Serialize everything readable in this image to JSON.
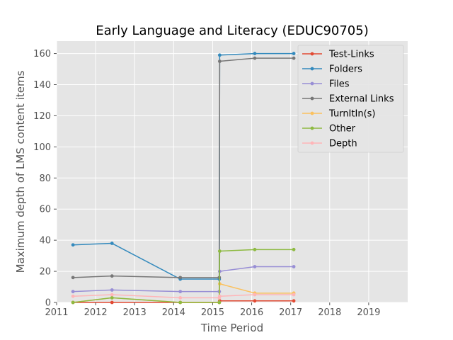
{
  "chart_data": {
    "type": "line",
    "title": "Early Language and Literacy (EDUC90705)",
    "xlabel": "Time Period",
    "ylabel": "Maximum depth of LMS content items",
    "xlim": [
      2011,
      2020
    ],
    "ylim": [
      0,
      168
    ],
    "xticks": [
      2011,
      2012,
      2013,
      2014,
      2015,
      2016,
      2017,
      2018,
      2019
    ],
    "yticks": [
      0,
      20,
      40,
      60,
      80,
      100,
      120,
      140,
      160
    ],
    "grid": true,
    "legend_position": "top-right",
    "series": [
      {
        "name": "Test-Links",
        "color": "#E24A33",
        "x": [
          2011.42,
          2012.42,
          2014.17,
          2015.17,
          2015.18,
          2016.08,
          2017.08
        ],
        "y": [
          0,
          0,
          0,
          0,
          1,
          1,
          1
        ]
      },
      {
        "name": "Folders",
        "color": "#348ABD",
        "x": [
          2011.42,
          2012.42,
          2014.17,
          2015.17,
          2015.18,
          2016.08,
          2017.08
        ],
        "y": [
          37,
          38,
          15,
          15,
          159,
          160,
          160
        ]
      },
      {
        "name": "Files",
        "color": "#988ED5",
        "x": [
          2011.42,
          2012.42,
          2014.17,
          2015.17,
          2015.18,
          2016.08,
          2017.08
        ],
        "y": [
          7,
          8,
          7,
          7,
          20,
          23,
          23
        ]
      },
      {
        "name": "External Links",
        "color": "#777777",
        "x": [
          2011.42,
          2012.42,
          2014.17,
          2015.17,
          2015.18,
          2016.08,
          2017.08
        ],
        "y": [
          16,
          17,
          16,
          16,
          155,
          157,
          157
        ]
      },
      {
        "name": "TurnItIn(s)",
        "color": "#FBC15E",
        "x": [
          2011.42,
          2012.42,
          2014.17,
          2015.17,
          2015.18,
          2016.08,
          2017.08
        ],
        "y": [
          0,
          3,
          0,
          0,
          12,
          6,
          6
        ]
      },
      {
        "name": "Other",
        "color": "#8EBA42",
        "x": [
          2011.42,
          2012.42,
          2014.17,
          2015.17,
          2015.18,
          2016.08,
          2017.08
        ],
        "y": [
          0,
          3,
          0,
          0,
          33,
          34,
          34
        ]
      },
      {
        "name": "Depth",
        "color": "#FFB5B8",
        "x": [
          2011.42,
          2012.42,
          2014.17,
          2015.17,
          2015.18,
          2016.08,
          2017.08
        ],
        "y": [
          4,
          5,
          3,
          3,
          4,
          5,
          5
        ]
      }
    ]
  }
}
